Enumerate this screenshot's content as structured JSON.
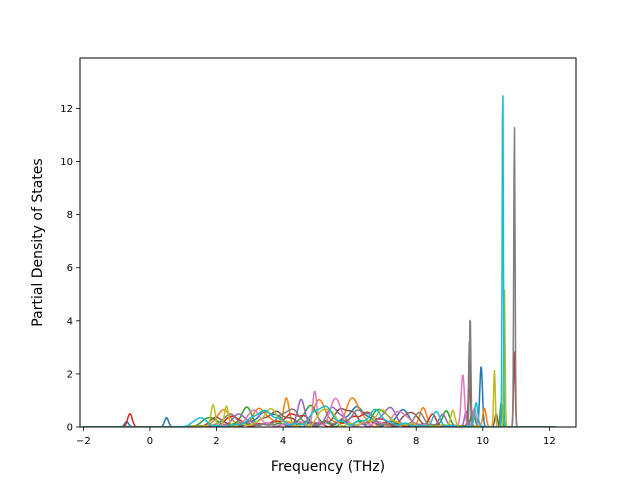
{
  "chart_data": {
    "type": "line",
    "title": "",
    "xlabel": "Frequency (THz)",
    "ylabel": "Partial Density of States",
    "xlim": [
      -2.1,
      12.8
    ],
    "ylim": [
      0,
      13.9
    ],
    "xticks": [
      -2,
      0,
      2,
      4,
      6,
      8,
      10,
      12
    ],
    "yticks": [
      0,
      2,
      4,
      6,
      8,
      10,
      12
    ],
    "grid": false,
    "legend": "none",
    "x_range": [
      -2.0,
      12.2
    ],
    "series_colors": [
      "#1f77b4",
      "#ff7f0e",
      "#2ca02c",
      "#d62728",
      "#9467bd",
      "#8c564b",
      "#e377c2",
      "#7f7f7f",
      "#bcbd22",
      "#17becf"
    ],
    "series": [
      {
        "color": "#1f77b4",
        "peaks": [
          [
            -0.7,
            0.2,
            0.06
          ],
          [
            0.5,
            0.35,
            0.06
          ],
          [
            3.5,
            0.5,
            0.3
          ],
          [
            6.2,
            0.55,
            0.3
          ],
          [
            7.6,
            0.5,
            0.2
          ],
          [
            9.95,
            2.25,
            0.04
          ],
          [
            10.6,
            0.8,
            0.03
          ]
        ]
      },
      {
        "color": "#ff7f0e",
        "peaks": [
          [
            2.2,
            0.6,
            0.2
          ],
          [
            3.3,
            0.65,
            0.2
          ],
          [
            4.1,
            0.95,
            0.08
          ],
          [
            5.1,
            0.8,
            0.2
          ],
          [
            6.1,
            0.9,
            0.2
          ],
          [
            8.2,
            0.7,
            0.1
          ],
          [
            10.05,
            0.7,
            0.05
          ]
        ]
      },
      {
        "color": "#2ca02c",
        "peaks": [
          [
            1.8,
            0.35,
            0.2
          ],
          [
            2.9,
            0.7,
            0.15
          ],
          [
            4.8,
            0.6,
            0.2
          ],
          [
            6.9,
            0.6,
            0.2
          ],
          [
            8.9,
            0.6,
            0.1
          ],
          [
            9.7,
            0.55,
            0.06
          ],
          [
            10.55,
            0.9,
            0.03
          ]
        ]
      },
      {
        "color": "#d62728",
        "peaks": [
          [
            -0.6,
            0.5,
            0.07
          ],
          [
            2.5,
            0.35,
            0.2
          ],
          [
            4.3,
            0.4,
            0.3
          ],
          [
            6.5,
            0.45,
            0.3
          ],
          [
            8.5,
            0.4,
            0.1
          ],
          [
            9.6,
            1.4,
            0.04
          ],
          [
            10.95,
            2.85,
            0.025
          ]
        ]
      },
      {
        "color": "#9467bd",
        "peaks": [
          [
            2.7,
            0.45,
            0.2
          ],
          [
            4.55,
            0.85,
            0.1
          ],
          [
            5.5,
            0.6,
            0.2
          ],
          [
            7.2,
            0.6,
            0.2
          ],
          [
            8.8,
            0.45,
            0.1
          ],
          [
            9.5,
            0.55,
            0.05
          ]
        ]
      },
      {
        "color": "#8c564b",
        "peaks": [
          [
            2.0,
            0.3,
            0.2
          ],
          [
            3.8,
            0.5,
            0.3
          ],
          [
            5.9,
            0.55,
            0.3
          ],
          [
            7.8,
            0.5,
            0.2
          ],
          [
            9.6,
            3.2,
            0.025
          ],
          [
            10.4,
            0.5,
            0.04
          ]
        ]
      },
      {
        "color": "#e377c2",
        "peaks": [
          [
            3.1,
            0.5,
            0.2
          ],
          [
            4.95,
            1.25,
            0.06
          ],
          [
            5.6,
            0.9,
            0.15
          ],
          [
            7.5,
            0.55,
            0.2
          ],
          [
            9.4,
            1.95,
            0.05
          ],
          [
            9.75,
            0.7,
            0.05
          ]
        ]
      },
      {
        "color": "#7f7f7f",
        "peaks": [
          [
            2.4,
            0.45,
            0.2
          ],
          [
            4.2,
            0.5,
            0.3
          ],
          [
            6.3,
            0.5,
            0.3
          ],
          [
            8.1,
            0.45,
            0.15
          ],
          [
            9.62,
            4.25,
            0.022
          ],
          [
            10.95,
            11.45,
            0.02
          ]
        ]
      },
      {
        "color": "#bcbd22",
        "peaks": [
          [
            1.9,
            0.8,
            0.06
          ],
          [
            2.3,
            0.75,
            0.06
          ],
          [
            3.6,
            0.6,
            0.2
          ],
          [
            5.3,
            0.55,
            0.2
          ],
          [
            7.0,
            0.55,
            0.2
          ],
          [
            9.1,
            0.6,
            0.06
          ],
          [
            10.35,
            2.15,
            0.025
          ],
          [
            10.65,
            5.25,
            0.02
          ]
        ]
      },
      {
        "color": "#17becf",
        "peaks": [
          [
            1.5,
            0.3,
            0.2
          ],
          [
            3.4,
            0.55,
            0.3
          ],
          [
            5.2,
            0.6,
            0.3
          ],
          [
            6.8,
            0.55,
            0.2
          ],
          [
            8.6,
            0.5,
            0.1
          ],
          [
            9.8,
            0.9,
            0.05
          ],
          [
            10.6,
            13.3,
            0.018
          ]
        ]
      }
    ]
  }
}
